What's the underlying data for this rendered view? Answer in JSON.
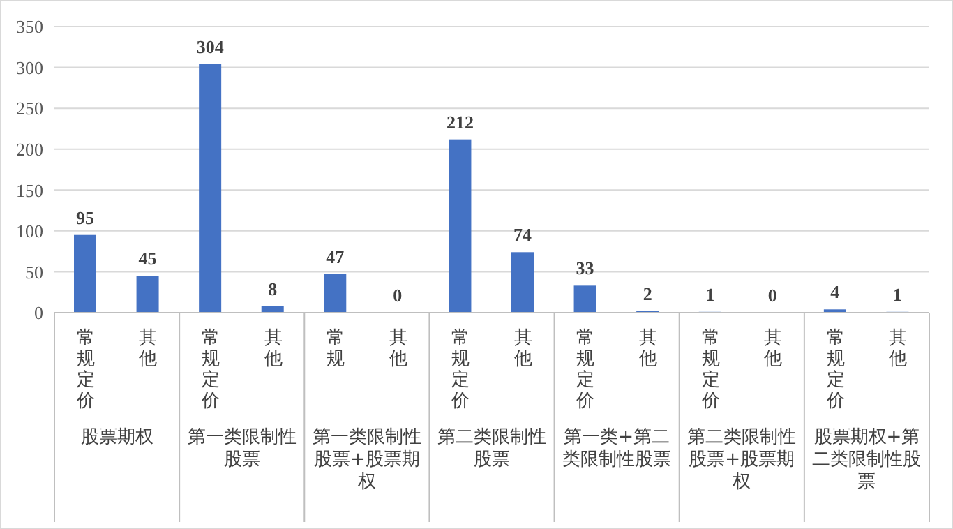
{
  "chart_data": {
    "type": "bar",
    "categories": [
      "常规定价",
      "其他",
      "常规定价",
      "其他",
      "常规",
      "其他",
      "常规定价",
      "其他",
      "常规定价",
      "其他",
      "常规定价",
      "其他",
      "常规定价",
      "其他"
    ],
    "annotations": [
      "股票期权",
      "第一类限制性股票",
      "第一类限制性股票+股票期权",
      "第二类限制性股票",
      "第一类+第二类限制性股票",
      "第二类限制性股票+股票期权",
      "股票期权+第二类限制性股票"
    ],
    "values": [
      95,
      45,
      304,
      8,
      47,
      0,
      212,
      74,
      33,
      2,
      1,
      0,
      4,
      1
    ],
    "color": "#4472c4",
    "ylim": [
      0,
      350
    ],
    "yticks": [
      0,
      50,
      100,
      150,
      200,
      250,
      300,
      350
    ],
    "grid": "y",
    "data_labels": true
  }
}
